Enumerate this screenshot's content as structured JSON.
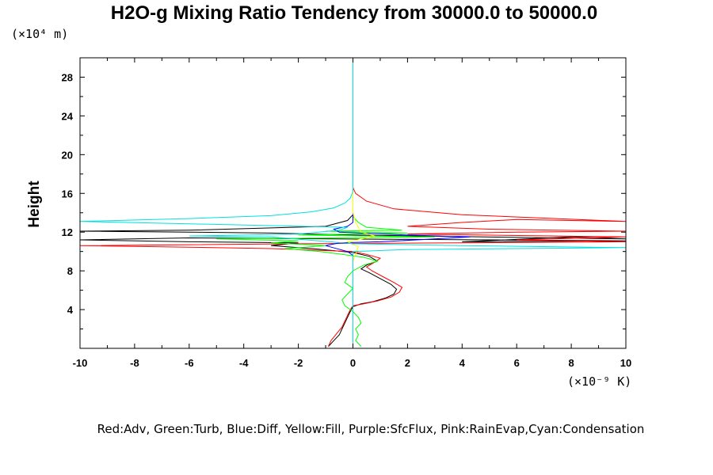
{
  "chart_data": {
    "type": "line",
    "title": "H2O-g Mixing Ratio Tendency from 30000.0 to 50000.0",
    "ylabel": "Height",
    "y_unit": "(×10⁴ m)",
    "x_unit": "(×10⁻⁹ K)",
    "xlim": [
      -10,
      10
    ],
    "ylim": [
      0,
      30
    ],
    "x_ticks": [
      -10,
      -8,
      -6,
      -4,
      -2,
      0,
      2,
      4,
      6,
      8,
      10
    ],
    "y_ticks": [
      4,
      8,
      12,
      16,
      20,
      24,
      28
    ],
    "grid": false,
    "legend_text": "Red:Adv, Green:Turb, Blue:Diff, Yellow:Fill, Purple:SfcFlux, Pink:RainEvap,Cyan:Condensation",
    "series": [
      {
        "name": "Black",
        "color": "#000000",
        "points": [
          [
            -0.9,
            0.2
          ],
          [
            -0.7,
            0.8
          ],
          [
            -0.5,
            1.4
          ],
          [
            -0.4,
            2.0
          ],
          [
            -0.3,
            2.6
          ],
          [
            -0.2,
            3.2
          ],
          [
            -0.1,
            3.8
          ],
          [
            0.0,
            4.3
          ],
          [
            0.3,
            4.6
          ],
          [
            0.7,
            4.8
          ],
          [
            1.2,
            5.2
          ],
          [
            1.5,
            5.6
          ],
          [
            1.6,
            6.1
          ],
          [
            1.4,
            6.6
          ],
          [
            1.0,
            7.2
          ],
          [
            0.6,
            7.8
          ],
          [
            0.3,
            8.2
          ],
          [
            0.5,
            8.6
          ],
          [
            0.9,
            9.0
          ],
          [
            0.6,
            9.5
          ],
          [
            0.0,
            9.9
          ],
          [
            -1.5,
            10.3
          ],
          [
            -3.0,
            10.6
          ],
          [
            -2.0,
            10.9
          ],
          [
            -6.0,
            11.0
          ],
          [
            -10.0,
            11.2
          ],
          [
            -6.0,
            11.4
          ],
          [
            10.0,
            11.1
          ],
          [
            4.0,
            11.0
          ],
          [
            8.0,
            11.5
          ],
          [
            10.0,
            11.3
          ],
          [
            0.0,
            11.7
          ],
          [
            -3.0,
            11.9
          ],
          [
            -6.0,
            12.0
          ],
          [
            -10.0,
            12.1
          ],
          [
            -6.0,
            12.2
          ],
          [
            -1.0,
            12.6
          ],
          [
            -0.2,
            13.2
          ],
          [
            0.0,
            13.8
          ],
          [
            0.0,
            14.5
          ],
          [
            0.0,
            30.0
          ]
        ]
      },
      {
        "name": "Red",
        "color": "#ff0000",
        "points": [
          [
            -0.9,
            0.2
          ],
          [
            -0.8,
            0.8
          ],
          [
            -0.6,
            1.5
          ],
          [
            -0.4,
            2.2
          ],
          [
            -0.3,
            2.8
          ],
          [
            -0.2,
            3.4
          ],
          [
            -0.1,
            4.0
          ],
          [
            0.0,
            4.4
          ],
          [
            0.4,
            4.6
          ],
          [
            0.9,
            4.9
          ],
          [
            1.4,
            5.3
          ],
          [
            1.7,
            5.8
          ],
          [
            1.8,
            6.3
          ],
          [
            1.5,
            6.8
          ],
          [
            1.1,
            7.4
          ],
          [
            0.7,
            8.0
          ],
          [
            0.5,
            8.4
          ],
          [
            0.8,
            8.9
          ],
          [
            1.0,
            9.3
          ],
          [
            0.5,
            9.7
          ],
          [
            0.0,
            10.0
          ],
          [
            -3.0,
            10.3
          ],
          [
            -6.0,
            10.45
          ],
          [
            -10.0,
            10.6
          ],
          [
            -2.0,
            10.8
          ],
          [
            4.0,
            10.9
          ],
          [
            10.0,
            11.0
          ],
          [
            6.0,
            11.2
          ],
          [
            10.0,
            11.5
          ],
          [
            2.0,
            11.8
          ],
          [
            6.0,
            12.0
          ],
          [
            10.0,
            12.1
          ],
          [
            5.0,
            12.3
          ],
          [
            2.0,
            12.6
          ],
          [
            4.0,
            13.0
          ],
          [
            6.0,
            13.3
          ],
          [
            10.0,
            13.1
          ],
          [
            4.0,
            13.8
          ],
          [
            1.5,
            14.4
          ],
          [
            0.5,
            15.2
          ],
          [
            0.1,
            16.0
          ],
          [
            0.0,
            16.6
          ],
          [
            0.0,
            30.0
          ]
        ]
      },
      {
        "name": "Green",
        "color": "#00ff00",
        "points": [
          [
            0.3,
            0.2
          ],
          [
            0.1,
            0.8
          ],
          [
            0.2,
            1.4
          ],
          [
            0.1,
            2.0
          ],
          [
            0.3,
            2.6
          ],
          [
            0.2,
            3.2
          ],
          [
            0.0,
            3.8
          ],
          [
            -0.3,
            4.4
          ],
          [
            -0.4,
            5.0
          ],
          [
            -0.2,
            5.6
          ],
          [
            0.0,
            6.2
          ],
          [
            -0.3,
            6.8
          ],
          [
            -0.2,
            7.4
          ],
          [
            0.0,
            8.0
          ],
          [
            0.4,
            8.6
          ],
          [
            0.9,
            9.0
          ],
          [
            0.4,
            9.4
          ],
          [
            -0.4,
            9.7
          ],
          [
            -1.2,
            10.0
          ],
          [
            -2.5,
            10.3
          ],
          [
            -1.0,
            10.6
          ],
          [
            -3.0,
            10.9
          ],
          [
            -2.0,
            11.1
          ],
          [
            -5.0,
            11.3
          ],
          [
            3.0,
            11.5
          ],
          [
            -2.0,
            11.7
          ],
          [
            2.0,
            11.9
          ],
          [
            -1.0,
            12.1
          ],
          [
            1.8,
            12.2
          ],
          [
            0.5,
            12.5
          ],
          [
            0.2,
            13.0
          ],
          [
            0.0,
            13.6
          ],
          [
            0.0,
            14.2
          ],
          [
            0.0,
            30.0
          ]
        ]
      },
      {
        "name": "Blue",
        "color": "#0000ff",
        "points": [
          [
            0.0,
            0.2
          ],
          [
            0.0,
            4.0
          ],
          [
            0.0,
            6.0
          ],
          [
            0.0,
            8.0
          ],
          [
            0.0,
            9.6
          ],
          [
            -0.2,
            10.0
          ],
          [
            -1.0,
            10.6
          ],
          [
            -0.5,
            10.9
          ],
          [
            1.0,
            11.0
          ],
          [
            3.0,
            11.3
          ],
          [
            4.3,
            11.5
          ],
          [
            2.0,
            11.7
          ],
          [
            -0.5,
            12.0
          ],
          [
            -0.7,
            12.3
          ],
          [
            -0.2,
            12.6
          ],
          [
            0.0,
            13.0
          ],
          [
            0.0,
            30.0
          ]
        ]
      },
      {
        "name": "Yellow",
        "color": "#ffff00",
        "points": [
          [
            0.0,
            0.2
          ],
          [
            0.0,
            9.0
          ],
          [
            0.2,
            10.5
          ],
          [
            -0.2,
            11.0
          ],
          [
            0.5,
            11.4
          ],
          [
            0.8,
            11.6
          ],
          [
            0.3,
            12.0
          ],
          [
            0.2,
            12.5
          ],
          [
            0.1,
            13.0
          ],
          [
            0.0,
            14.0
          ],
          [
            0.0,
            30.0
          ]
        ]
      },
      {
        "name": "Cyan",
        "color": "#00e0e0",
        "points": [
          [
            0.0,
            0.2
          ],
          [
            0.0,
            10.0
          ],
          [
            2.0,
            10.2
          ],
          [
            6.0,
            10.3
          ],
          [
            10.0,
            10.4
          ],
          [
            4.0,
            10.6
          ],
          [
            0.0,
            10.8
          ],
          [
            -3.0,
            11.5
          ],
          [
            -6.0,
            11.6
          ],
          [
            -2.0,
            11.8
          ],
          [
            -0.5,
            12.2
          ],
          [
            -0.2,
            12.5
          ],
          [
            -10.0,
            13.1
          ],
          [
            -6.0,
            13.4
          ],
          [
            -3.0,
            13.7
          ],
          [
            -1.5,
            14.1
          ],
          [
            -0.7,
            14.5
          ],
          [
            -0.3,
            15.0
          ],
          [
            -0.1,
            15.5
          ],
          [
            0.0,
            16.2
          ],
          [
            0.0,
            30.0
          ]
        ]
      }
    ]
  }
}
